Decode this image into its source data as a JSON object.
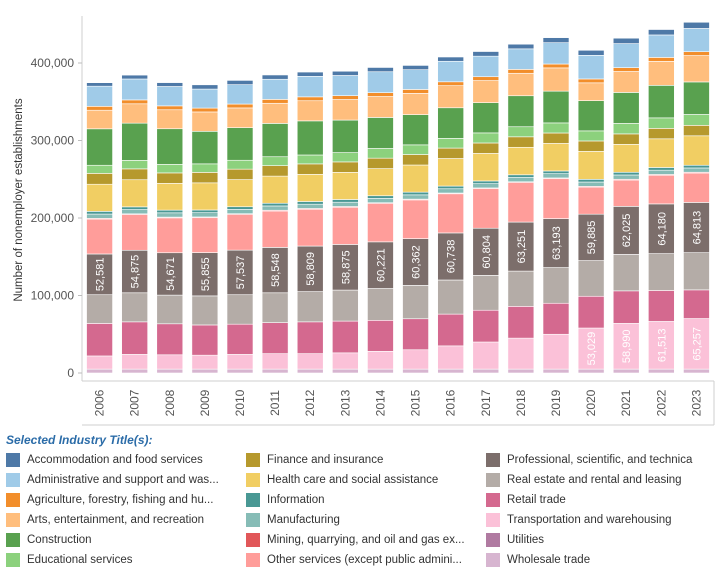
{
  "chart_data": {
    "type": "bar",
    "stacked": true,
    "title": "",
    "ylabel": "Number of nonemployer establishments",
    "xlabel": "",
    "ylim": [
      0,
      455000
    ],
    "yticks": [
      0,
      100000,
      200000,
      300000,
      400000
    ],
    "ytick_labels": [
      "0",
      "100,000",
      "200,000",
      "300,000",
      "400,000"
    ],
    "categories": [
      "2006",
      "2007",
      "2008",
      "2009",
      "2010",
      "2011",
      "2012",
      "2013",
      "2014",
      "2015",
      "2016",
      "2017",
      "2018",
      "2019",
      "2020",
      "2021",
      "2022",
      "2023"
    ],
    "legend_title": "Selected Industry Title(s):",
    "series": [
      {
        "name": "Wholesale trade",
        "color": "#d7b5d0",
        "values": [
          5000,
          5000,
          5000,
          5000,
          5000,
          5000,
          5000,
          5000,
          5000,
          5000,
          5000,
          5000,
          5000,
          5000,
          5000,
          5000,
          5000,
          5000
        ]
      },
      {
        "name": "Transportation and warehousing",
        "color": "#fbc1d8",
        "labels_shown": [
          "",
          "",
          "",
          "",
          "",
          "",
          "",
          "",
          "",
          "",
          "",
          "",
          "",
          "",
          "53,029",
          "58,990",
          "61,513",
          "65,257"
        ],
        "values": [
          17000,
          19000,
          18500,
          18000,
          19000,
          20000,
          20000,
          21000,
          23000,
          25000,
          30000,
          35000,
          40000,
          45000,
          53029,
          58990,
          61513,
          65257
        ]
      },
      {
        "name": "Retail trade",
        "color": "#d4698f",
        "values": [
          42000,
          42000,
          40000,
          39000,
          39000,
          40000,
          41000,
          41000,
          40000,
          40000,
          41000,
          41000,
          41000,
          40000,
          41000,
          42000,
          40000,
          37000
        ]
      },
      {
        "name": "Real estate and rental and leasing",
        "color": "#b4aca7",
        "values": [
          37000,
          37500,
          37000,
          37500,
          38000,
          38500,
          39000,
          40000,
          41000,
          43000,
          44000,
          45000,
          45500,
          46000,
          46000,
          47000,
          47500,
          48000
        ]
      },
      {
        "name": "Professional, scientific, and technical services",
        "color": "#7c6e6b",
        "labels_shown": [
          "52,581",
          "54,875",
          "54,671",
          "55,855",
          "57,537",
          "58,548",
          "58,809",
          "58,875",
          "60,221",
          "60,362",
          "60,738",
          "60,804",
          "63,251",
          "63,193",
          "59,885",
          "62,025",
          "64,180",
          "64,813"
        ],
        "values": [
          52581,
          54875,
          54671,
          55855,
          57537,
          58548,
          58809,
          58875,
          60221,
          60362,
          60738,
          60804,
          63251,
          63193,
          59885,
          62025,
          64180,
          64813
        ]
      },
      {
        "name": "Other services (except public administration)",
        "color": "#ff9d9a",
        "values": [
          45000,
          46000,
          45000,
          45000,
          46000,
          47000,
          47500,
          48000,
          49500,
          50000,
          50500,
          51000,
          51000,
          51500,
          35000,
          34000,
          37000,
          38000
        ]
      },
      {
        "name": "Mining, quarrying, and oil and gas extraction",
        "color": "#e15759",
        "values": [
          1000,
          1000,
          1000,
          1000,
          1000,
          1000,
          1000,
          1000,
          1000,
          1000,
          1000,
          1000,
          1000,
          1000,
          1000,
          1000,
          1000,
          1000
        ]
      },
      {
        "name": "Manufacturing",
        "color": "#86bcb6",
        "values": [
          5500,
          5500,
          5500,
          5500,
          5500,
          5500,
          5500,
          5500,
          5500,
          5500,
          5500,
          5500,
          5500,
          5500,
          5500,
          5500,
          5500,
          5500
        ]
      },
      {
        "name": "Information",
        "color": "#499894",
        "values": [
          3500,
          3500,
          3500,
          3500,
          3500,
          3500,
          3500,
          3500,
          3500,
          3500,
          3500,
          3500,
          3500,
          3500,
          3500,
          3500,
          3500,
          3500
        ]
      },
      {
        "name": "Health care and social assistance",
        "color": "#f1ce63",
        "values": [
          35000,
          35000,
          34500,
          35000,
          35000,
          35000,
          35000,
          35000,
          35000,
          35000,
          35500,
          35500,
          35500,
          35500,
          36000,
          36000,
          37000,
          38000
        ]
      },
      {
        "name": "Finance and insurance",
        "color": "#b6992d",
        "values": [
          14000,
          14000,
          13500,
          13500,
          13500,
          13500,
          13500,
          13500,
          13500,
          13500,
          13500,
          13500,
          13500,
          13500,
          13500,
          13500,
          13500,
          13500
        ]
      },
      {
        "name": "Educational services",
        "color": "#8cd17d",
        "values": [
          10500,
          11000,
          11000,
          11000,
          11500,
          11500,
          11500,
          12000,
          12500,
          12500,
          12500,
          13000,
          13000,
          13000,
          13000,
          13500,
          13500,
          14000
        ]
      },
      {
        "name": "Construction",
        "color": "#59a14f",
        "values": [
          47000,
          48000,
          46000,
          42000,
          42000,
          43000,
          44000,
          42000,
          40000,
          39000,
          39500,
          39000,
          40000,
          41000,
          39000,
          40000,
          42000,
          42000
        ]
      },
      {
        "name": "Arts, entertainment, and recreation",
        "color": "#ffbe7d",
        "values": [
          24000,
          25000,
          24500,
          25000,
          25500,
          26000,
          26000,
          26500,
          27000,
          27500,
          28500,
          28500,
          29000,
          30000,
          23000,
          27000,
          31000,
          34000
        ]
      },
      {
        "name": "Agriculture, forestry, fishing and hunting",
        "color": "#f28e2b",
        "values": [
          5000,
          5000,
          5000,
          5000,
          5000,
          5000,
          5000,
          5000,
          5000,
          5000,
          5000,
          5000,
          5000,
          5000,
          5000,
          5000,
          5000,
          5000
        ]
      },
      {
        "name": "Administrative and support and waste management",
        "color": "#a0cbe8",
        "values": [
          26000,
          27000,
          25000,
          24500,
          25000,
          26000,
          26500,
          26000,
          27000,
          25500,
          26500,
          26500,
          26500,
          27500,
          30500,
          31000,
          29000,
          30000
        ]
      },
      {
        "name": "Accommodation and food services",
        "color": "#4e79a7",
        "values": [
          4500,
          5000,
          5000,
          5500,
          5500,
          5500,
          5500,
          5500,
          5500,
          5500,
          5500,
          6000,
          6000,
          6500,
          6500,
          7000,
          7000,
          8000
        ]
      }
    ],
    "legend_entries": [
      {
        "label": "Accommodation and food services",
        "color": "#4e79a7"
      },
      {
        "label": "Administrative and support and was...",
        "color": "#a0cbe8"
      },
      {
        "label": "Agriculture, forestry, fishing and hu...",
        "color": "#f28e2b"
      },
      {
        "label": "Arts, entertainment, and recreation",
        "color": "#ffbe7d"
      },
      {
        "label": "Construction",
        "color": "#59a14f"
      },
      {
        "label": "Educational services",
        "color": "#8cd17d"
      },
      {
        "label": "Finance and insurance",
        "color": "#b6992d"
      },
      {
        "label": "Health care and social assistance",
        "color": "#f1ce63"
      },
      {
        "label": "Information",
        "color": "#499894"
      },
      {
        "label": "Manufacturing",
        "color": "#86bcb6"
      },
      {
        "label": "Mining, quarrying, and oil and gas ex...",
        "color": "#e15759"
      },
      {
        "label": "Other services (except public admini...",
        "color": "#ff9d9a"
      },
      {
        "label": "Professional, scientific, and technica",
        "color": "#7c6e6b"
      },
      {
        "label": "Real estate and rental and leasing",
        "color": "#b4aca7"
      },
      {
        "label": "Retail trade",
        "color": "#d4698f"
      },
      {
        "label": "Transportation and warehousing",
        "color": "#fbc1d8"
      },
      {
        "label": "Utilities",
        "color": "#b07aa1"
      },
      {
        "label": "Wholesale trade",
        "color": "#d7b5d0"
      }
    ]
  }
}
